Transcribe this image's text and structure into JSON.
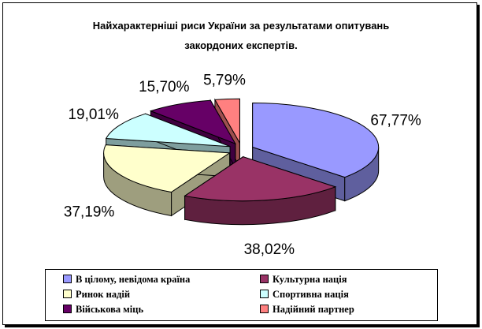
{
  "chart_data": {
    "type": "pie",
    "title_lines": [
      "Найхарактерніші риси України за результатами опитувань",
      "закордоних експертів."
    ],
    "categories": [
      "В цілому, невідома країна",
      "Культурна нація",
      "Ринок надій",
      "Спортивна нація",
      "Військова міць",
      "Надійний партнер"
    ],
    "values": [
      67.77,
      38.02,
      37.19,
      19.01,
      15.7,
      5.79
    ],
    "value_labels": [
      "67,77%",
      "38,02%",
      "37,19%",
      "19,01%",
      "15,70%",
      "5,79%"
    ],
    "colors": [
      "#9999ff",
      "#993366",
      "#ffffcc",
      "#ccffff",
      "#660066",
      "#ff8080"
    ],
    "legend_position": "bottom",
    "exploded": true,
    "three_d": true
  }
}
